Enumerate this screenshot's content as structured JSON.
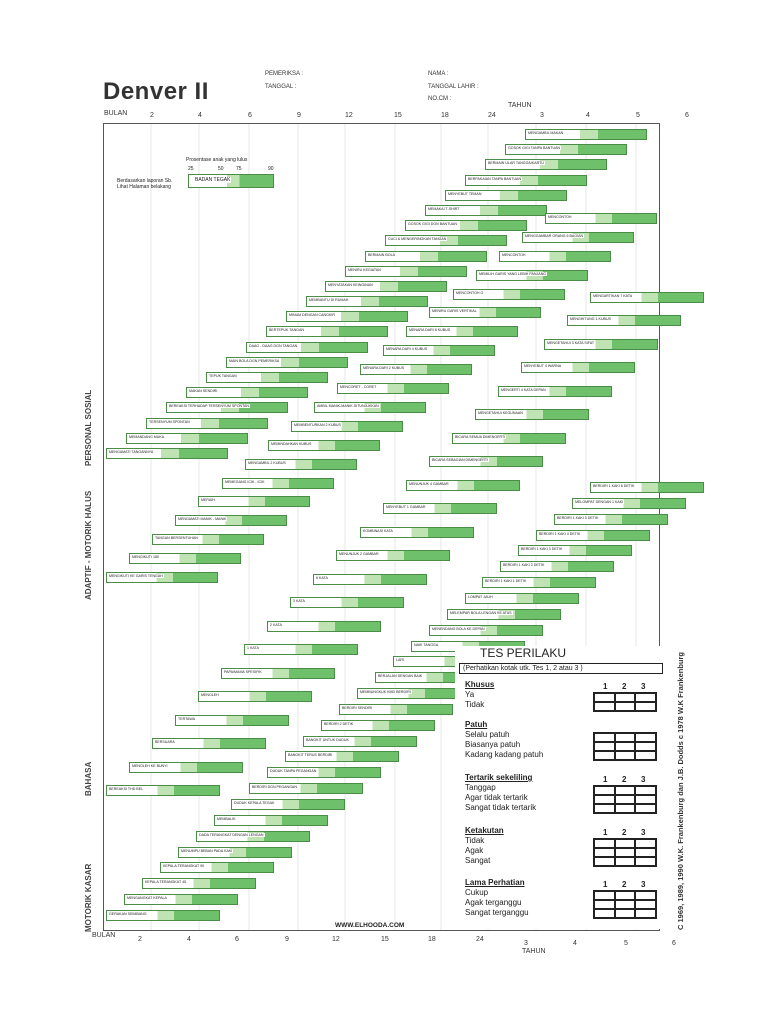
{
  "title": "Denver II",
  "header": {
    "pemeriksa": "PEMERIKSA :",
    "tanggal": "TANGGAL :",
    "nama": "NAMA :",
    "tanggal_lahir": "TANGGAL LAHIR :",
    "no_cm": "NO.CM :"
  },
  "axis": {
    "bulan": "BULAN",
    "tahun": "TAHUN",
    "month_ticks": [
      "2",
      "4",
      "6",
      "9",
      "12",
      "15",
      "18",
      "24"
    ],
    "year_ticks": [
      "3",
      "4",
      "5",
      "6"
    ]
  },
  "legend": {
    "intro": "Berdasarkan laporan Sb. Lihat Halaman belakang",
    "percent_title": "Prosentase anak yang lulus",
    "percents": [
      "25",
      "50",
      "75",
      "90"
    ],
    "sample_label": "BADAN TEGAK"
  },
  "sectors": [
    "PERSONAL SOSIAL",
    "ADAPTIF - MOTORIK HALUS",
    "BAHASA",
    "MOTORIK KASAR"
  ],
  "tasks": {
    "personal_sosial": [
      "MENGAMBIL MAKAN",
      "GOSOK GIGI TANPA BANTUAN",
      "BERMAIN ULAR TANGGA/KARTU",
      "BERPAKAIAN TANPA BANTUAN",
      "MENYEBUT TEMAN",
      "MEMAKAI T-SHIRT",
      "GOSOK GIGI DGN BANTUAN",
      "CUCI & MENGERINGKAN TANGAN",
      "BERMAIN BOLA",
      "MENIRU KEGIATAN",
      "MENYATAKAN KEINGINAN",
      "MEMBANTU DI RUMAH",
      "MINUM DENGAN CANGKIR",
      "BERTEPUK TANGAN",
      "DAAG - DAAG DGN TANGAN",
      "MAIN BOLA DGN PEMERIKSA",
      "TEPUK TANGAN",
      "MAKAN SENDIRI",
      "BEREAKSI TERHADAP TERSENYUM SPONTAN",
      "TERSENYUM SPONTAN",
      "MEMANDANG MUKA",
      "MENGAMATI TANGANNYA"
    ],
    "motorik_halus": [
      "MENCONTOH",
      "MENGGAMBAR ORANG 6 BAGIAN",
      "MENCONTOH",
      "MEMILIH GARIS YANG LEBIH PANJANG",
      "MENCONTOH O",
      "MENIRU GARIS VERTIKAL",
      "MENARA DARI 8 KUBUS",
      "MENARA DARI 4 KUBUS",
      "MENARA DARI 2 KUBUS",
      "MENCORET - CORET",
      "AMBIL MANIK-MANIK DITUNJUKKAN",
      "MEMBENTURKAN 2 KUBUS",
      "MEMINDAHKAN KUBUS",
      "MENGAMBIL 2 KUBUS",
      "MEMEGANG ICIK - ICIK",
      "MERAIH",
      "MENGAMATI MANIK - MANIK",
      "TANGAN BERSENTUHAN",
      "MENGIKUTI 180",
      "MENGIKUTI KE GARIS TENGAH"
    ],
    "bahasa": [
      "MENGARTIKAN 7 KATA",
      "MENGHITUNG 1 KUBUS",
      "MENGETAHUI 3 KATA SIFAT",
      "MENYEBUT 4 WARNA",
      "MENGERTI 4 KATA DEPAN",
      "MENGETAHUI KEGUNAAN",
      "BICARA SEMUA DIMENGERTI",
      "BICARA SEBAGIAN DIMENGERTI",
      "MENUNJUK 4 GAMBAR",
      "MENYEBUT 1 GAMBAR",
      "KOMBINASI KATA",
      "MENUNJUK 2 GAMBAR",
      "6 KATA",
      "3 KATA",
      "2 KATA",
      "1 KATA",
      "PAPA/MAMA SPESIFIK",
      "MENOLEH",
      "TERTAWA",
      "BERSUARA",
      "MENOLEH KE BUNYI",
      "BEREAKSI THD BEL"
    ],
    "motorik_kasar": [
      "BERDIRI 1 KAKI 6 DETIK",
      "MELOMPAT DENGAN 1 KAKI",
      "BERDIRI 1 KAKI 5 DETIK",
      "BERDIRI 1 KAKI 4 DETIK",
      "BERDIRI 1 KAKI 3 DETIK",
      "BERDIRI 1 KAKI 2 DETIK",
      "BERDIRI 1 KAKI 1 DETIK",
      "LOMPAT JAUH",
      "MELEMPAR BOLA LENGAN KE ATAS",
      "MENENDANG BOLA KE DEPAN",
      "NAIK TANGGA",
      "LARI",
      "BERJALAN DENGAN BAIK",
      "MEMBUNGKUK KMD BERDIRI",
      "BERDIRI SENDIRI",
      "BERDIRI 2 DETIK",
      "BANGKIT UNTUK DUDUK",
      "BANGKIT TERUS BERDIRI",
      "DUDUK TANPA PEGANGAN",
      "BERDIRI DGN PEGANGAN",
      "DUDUK KEPALA TEGAK",
      "MEMBALIK",
      "DADA TERANGKAT DENGAN LENGAN",
      "MENUMPU BEBAN PADA KAKI",
      "KEPALA TERANGKAT 90",
      "KEPALA TERANGKAT 45",
      "MENGANGKAT KEPALA",
      "GERAKAN SEIMBANG"
    ]
  },
  "tes_perilaku": {
    "title": "TES PERILAKU",
    "note": "(Perhatikan kotak utk. Tes 1, 2 atau 3 )",
    "col_nums": [
      "1",
      "2",
      "3"
    ],
    "sections": [
      {
        "heading": "Khusus",
        "options": [
          "Ya",
          "Tidak"
        ]
      },
      {
        "heading": "Patuh",
        "options": [
          "Selalu patuh",
          "Biasanya patuh",
          "Kadang kadang patuh"
        ]
      },
      {
        "heading": "Tertarik sekeliling",
        "options": [
          "Tanggap",
          "Agar tidak tertarik",
          "Sangat tidak tertarik"
        ]
      },
      {
        "heading": "Ketakutan",
        "options": [
          "Tidak",
          "Agak",
          "Sangat"
        ]
      },
      {
        "heading": "Lama Perhatian",
        "options": [
          "Cukup",
          "Agak terganggu",
          "Sangat terganggu"
        ]
      }
    ]
  },
  "copyright": "C 1969, 1989, 1990 W.K. Frankenburg dan J.B. Dodds c 1978 W.K Frankenburg",
  "website": "WWW.ELHOODA.COM"
}
